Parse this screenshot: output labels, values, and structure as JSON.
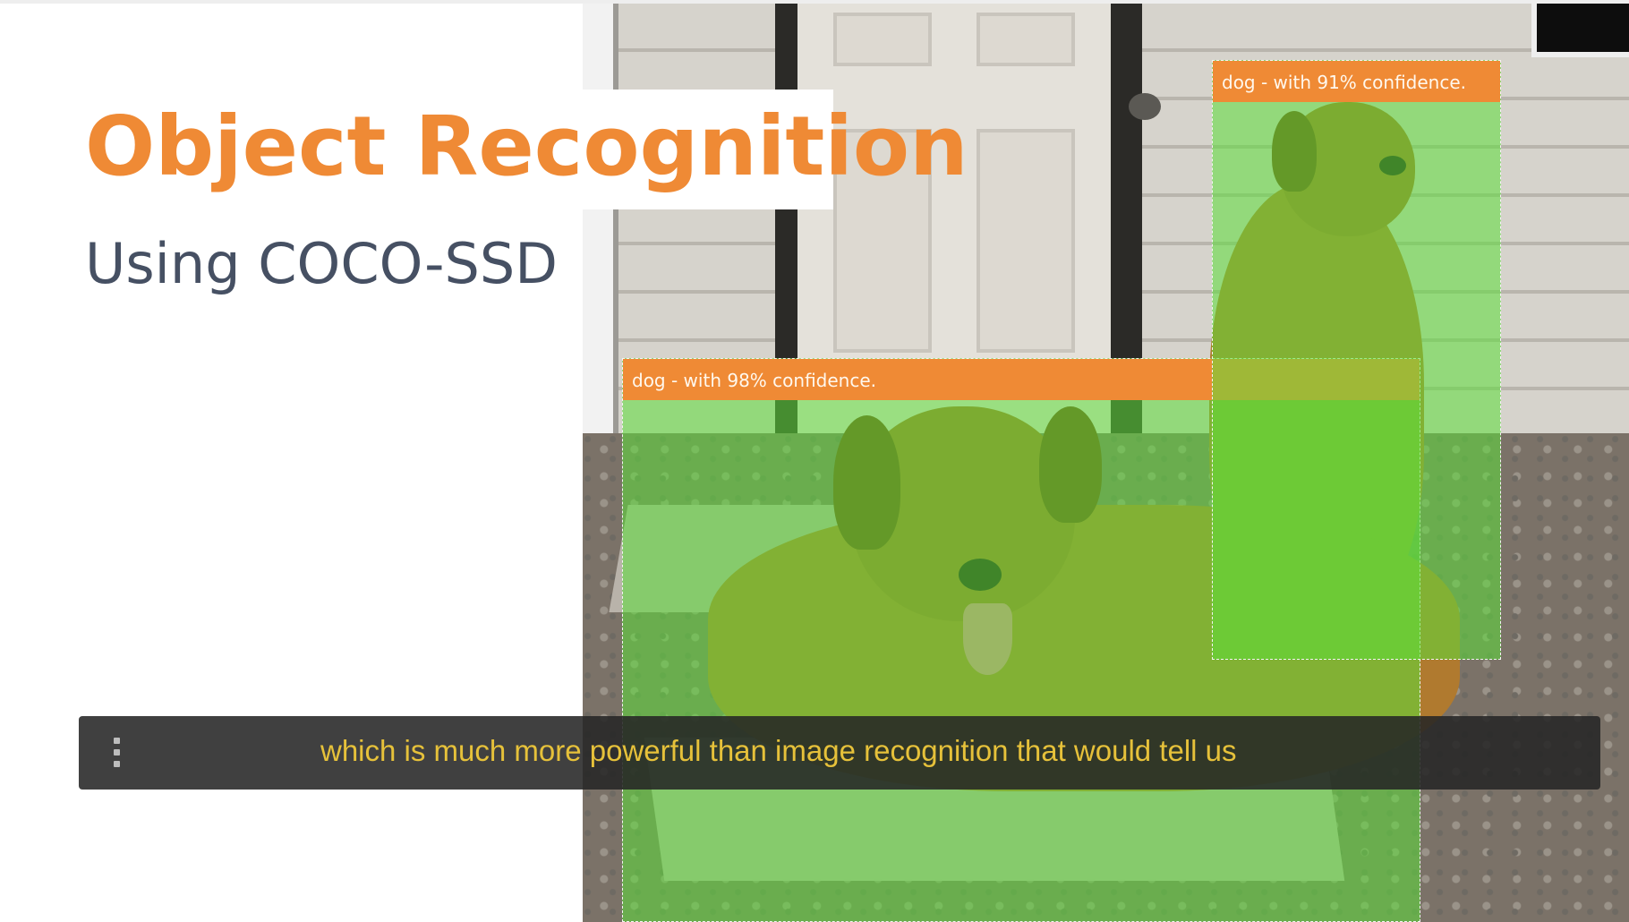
{
  "slide": {
    "title": "Object Recognition",
    "subtitle": "Using COCO-SSD"
  },
  "detections": [
    {
      "label": "dog - with 98% confidence."
    },
    {
      "label": "dog - with 91% confidence."
    }
  ],
  "caption": {
    "text": "which is much more powerful than image recognition that would tell us"
  },
  "colors": {
    "accent": "#ef8a35",
    "subtitle": "#465063",
    "caption_text": "#e6c13a",
    "detection_fill": "#5cde38"
  }
}
